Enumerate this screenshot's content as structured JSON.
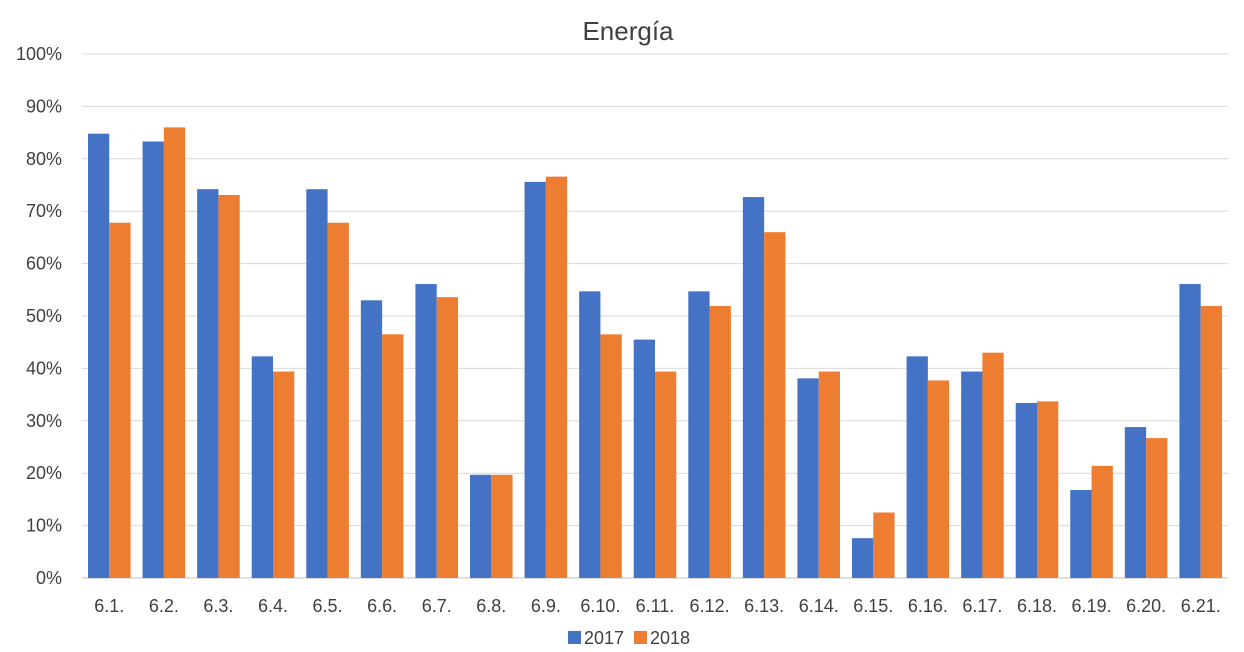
{
  "chart_data": {
    "type": "bar",
    "title": "Energía",
    "xlabel": "",
    "ylabel": "",
    "ylim": [
      0,
      100
    ],
    "yticks": [
      "0%",
      "10%",
      "20%",
      "30%",
      "40%",
      "50%",
      "60%",
      "70%",
      "80%",
      "90%",
      "100%"
    ],
    "grid": true,
    "legend_position": "bottom",
    "categories": [
      "6.1.",
      "6.2.",
      "6.3.",
      "6.4.",
      "6.5.",
      "6.6.",
      "6.7.",
      "6.8.",
      "6.9.",
      "6.10.",
      "6.11.",
      "6.12.",
      "6.13.",
      "6.14.",
      "6.15.",
      "6.16.",
      "6.17.",
      "6.18.",
      "6.19.",
      "6.20.",
      "6.21."
    ],
    "series": [
      {
        "name": "2017",
        "color": "#4472c4",
        "values": [
          84.8,
          83.3,
          74.2,
          42.3,
          74.2,
          53.0,
          56.1,
          19.7,
          75.6,
          54.7,
          45.5,
          54.7,
          72.7,
          38.1,
          7.6,
          42.3,
          39.4,
          33.4,
          16.8,
          28.8,
          56.1
        ]
      },
      {
        "name": "2018",
        "color": "#ed7d31",
        "values": [
          67.8,
          86.0,
          73.1,
          39.4,
          67.8,
          46.5,
          53.6,
          19.7,
          76.6,
          46.5,
          39.4,
          51.9,
          66.0,
          39.4,
          12.5,
          37.7,
          43.0,
          33.7,
          21.4,
          26.7,
          51.9
        ]
      }
    ]
  }
}
